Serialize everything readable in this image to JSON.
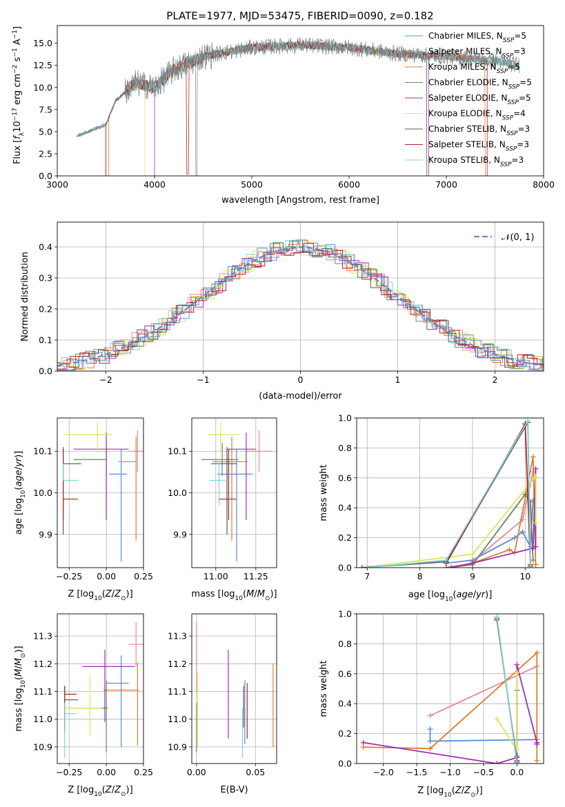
{
  "title": "PLATE=1977, MJD=53475, FIBERID=0090, z=0.182",
  "colors": {
    "Chabrier MILES": "#5b8bd8",
    "Salpeter MILES": "#e5889b",
    "Kroupa MILES": "#e07b2e",
    "Chabrier ELODIE": "#5f8a5f",
    "Salpeter ELODIE": "#9b2fae",
    "Kroupa ELODIE": "#d8e85a",
    "Chabrier STELIB": "#555555",
    "Salpeter STELIB": "#b22222",
    "Kroupa STELIB": "#7ed3df"
  },
  "chart_data": [
    {
      "id": "spectrum",
      "type": "line",
      "xlabel": "wavelength [Angstrom, rest frame]",
      "ylabel": "Flux [f_λ 10^-17 erg cm^-2 s^-1 A^-1]",
      "xlim": [
        3000,
        8000
      ],
      "ylim": [
        0,
        17
      ],
      "xticks": [
        "3000",
        "4000",
        "5000",
        "6000",
        "7000",
        "8000"
      ],
      "yticks": [
        "0.0",
        "2.5",
        "5.0",
        "7.5",
        "10.0",
        "12.5",
        "15.0"
      ],
      "legend_position": "top-right",
      "legend": [
        {
          "label": "Chabrier MILES, N",
          "sub": "SSP",
          "suffix": "=5",
          "color": "#5b8bd8"
        },
        {
          "label": "Salpeter MILES, N",
          "sub": "SSP",
          "suffix": "=3",
          "color": "#e5889b"
        },
        {
          "label": "Kroupa MILES, N",
          "sub": "SSP",
          "suffix": "=5",
          "color": "#e07b2e"
        },
        {
          "label": "Chabrier ELODIE, N",
          "sub": "SSP",
          "suffix": "=5",
          "color": "#5f8a5f"
        },
        {
          "label": "Salpeter ELODIE, N",
          "sub": "SSP",
          "suffix": "=5",
          "color": "#9b2fae"
        },
        {
          "label": "Kroupa ELODIE, N",
          "sub": "SSP",
          "suffix": "=4",
          "color": "#d8e85a"
        },
        {
          "label": "Chabrier STELIB, N",
          "sub": "SSP",
          "suffix": "=3",
          "color": "#555555"
        },
        {
          "label": "Salpeter STELIB, N",
          "sub": "SSP",
          "suffix": "=3",
          "color": "#b22222"
        },
        {
          "label": "Kroupa STELIB, N",
          "sub": "SSP",
          "suffix": "=3",
          "color": "#7ed3df"
        }
      ],
      "observed_envelope": {
        "x": [
          3200,
          3500,
          3600,
          3800,
          4000,
          4200,
          4500,
          5000,
          5500,
          6000,
          6500,
          7000,
          7500,
          7750
        ],
        "y": [
          4.5,
          5.8,
          8.5,
          10.5,
          10.0,
          12.0,
          13.5,
          14.5,
          14.8,
          14.5,
          13.8,
          13.5,
          13.0,
          12.5
        ]
      }
    },
    {
      "id": "residuals",
      "type": "histogram",
      "xlabel": "(data-model)/error",
      "ylabel": "Normed distribution",
      "xlim": [
        -2.5,
        2.5
      ],
      "ylim": [
        0,
        0.48
      ],
      "xticks": [
        "−2",
        "−1",
        "0",
        "1",
        "2"
      ],
      "yticks": [
        "0.0",
        "0.1",
        "0.2",
        "0.3",
        "0.4"
      ],
      "reference_curve": "N(0,1)",
      "legend_position": "top-right",
      "legend": [
        {
          "label": "𝒩(0, 1)",
          "color": "#5b8bd8"
        }
      ]
    },
    {
      "id": "age_vs_Z",
      "type": "scatter",
      "xlabel": "Z [log10(Z/Z⊙)]",
      "ylabel": "age [log10(age/yr)]",
      "xlim": [
        -0.33,
        0.25
      ],
      "ylim": [
        9.82,
        10.18
      ],
      "xticks": [
        "−0.25",
        "0.00",
        "0.25"
      ],
      "yticks": [
        "9.9",
        "10.0",
        "10.1"
      ],
      "points": [
        {
          "model": "Chabrier MILES",
          "x": 0.1,
          "y": 10.045,
          "xerr": [
            0.08,
            0.04
          ],
          "yerr": [
            0.21,
            0.06
          ]
        },
        {
          "model": "Salpeter MILES",
          "x": 0.21,
          "y": 10.1,
          "xerr": [
            0.06,
            0.06
          ],
          "yerr": [
            0.05,
            0.05
          ]
        },
        {
          "model": "Kroupa MILES",
          "x": 0.2,
          "y": 10.075,
          "xerr": [
            0.12,
            0.0
          ],
          "yerr": [
            0.19,
            0.06
          ]
        },
        {
          "model": "Chabrier ELODIE",
          "x": 0.0,
          "y": 10.08,
          "xerr": [
            0.22,
            0.0
          ],
          "yerr": [
            0.04,
            0.04
          ]
        },
        {
          "model": "Salpeter ELODIE",
          "x": 0.0,
          "y": 10.105,
          "xerr": [
            0.22,
            0.15
          ],
          "yerr": [
            0.17,
            0.04
          ]
        },
        {
          "model": "Kroupa ELODIE",
          "x": -0.06,
          "y": 10.14,
          "xerr": [
            0.22,
            0.1
          ],
          "yerr": [
            0.04,
            0.03
          ]
        },
        {
          "model": "Chabrier STELIB",
          "x": -0.29,
          "y": 10.07,
          "xerr": [
            0.0,
            0.12
          ],
          "yerr": [
            0.17,
            0.04
          ]
        },
        {
          "model": "Salpeter STELIB",
          "x": -0.29,
          "y": 9.985,
          "xerr": [
            0.0,
            0.1
          ],
          "yerr": [
            0.05,
            0.12
          ]
        },
        {
          "model": "Kroupa STELIB",
          "x": -0.29,
          "y": 10.03,
          "xerr": [
            0.0,
            0.1
          ],
          "yerr": [
            0.0,
            0.04
          ]
        }
      ]
    },
    {
      "id": "age_vs_mass",
      "type": "scatter",
      "xlabel": "mass [log10(M/M⊙)]",
      "ylabel": "",
      "xlim": [
        10.85,
        11.38
      ],
      "ylim": [
        9.82,
        10.18
      ],
      "xticks": [
        "11.00",
        "11.25"
      ],
      "yticks": [
        "9.9",
        "10.0",
        "10.1"
      ],
      "points": [
        {
          "model": "Chabrier MILES",
          "x": 11.13,
          "y": 10.045,
          "xerr": [
            0.12,
            0.1
          ],
          "yerr": [
            0.21,
            0.06
          ]
        },
        {
          "model": "Salpeter MILES",
          "x": 11.27,
          "y": 10.1,
          "xerr": [
            0.08,
            0.08
          ],
          "yerr": [
            0.05,
            0.05
          ]
        },
        {
          "model": "Kroupa MILES",
          "x": 11.1,
          "y": 10.075,
          "xerr": [
            0.12,
            0.1
          ],
          "yerr": [
            0.19,
            0.06
          ]
        },
        {
          "model": "Chabrier ELODIE",
          "x": 11.04,
          "y": 10.08,
          "xerr": [
            0.13,
            0.1
          ],
          "yerr": [
            0.04,
            0.04
          ]
        },
        {
          "model": "Salpeter ELODIE",
          "x": 11.19,
          "y": 10.105,
          "xerr": [
            0.12,
            0.06
          ],
          "yerr": [
            0.17,
            0.04
          ]
        },
        {
          "model": "Kroupa ELODIE",
          "x": 11.03,
          "y": 10.14,
          "xerr": [
            0.08,
            0.12
          ],
          "yerr": [
            0.04,
            0.03
          ]
        },
        {
          "model": "Chabrier STELIB",
          "x": 11.07,
          "y": 10.07,
          "xerr": [
            0.1,
            0.06
          ],
          "yerr": [
            0.17,
            0.04
          ]
        },
        {
          "model": "Salpeter STELIB",
          "x": 11.08,
          "y": 9.985,
          "xerr": [
            0.06,
            0.05
          ],
          "yerr": [
            0.05,
            0.12
          ]
        },
        {
          "model": "Kroupa STELIB",
          "x": 11.02,
          "y": 10.03,
          "xerr": [
            0.06,
            0.04
          ],
          "yerr": [
            0.06,
            0.04
          ]
        }
      ]
    },
    {
      "id": "mass_weight_vs_age",
      "type": "line",
      "xlabel": "age [log10(age/yr)]",
      "ylabel": "mass weight",
      "xlim": [
        6.8,
        10.35
      ],
      "ylim": [
        0,
        1
      ],
      "xticks": [
        "7",
        "8",
        "9",
        "10"
      ],
      "yticks": [
        "0.0",
        "0.2",
        "0.4",
        "0.6",
        "0.8",
        "1.0"
      ],
      "series": [
        {
          "model": "Chabrier MILES",
          "x": [
            8.5,
            9.0,
            9.8,
            9.95,
            10.1,
            10.15
          ],
          "y": [
            0.03,
            0.05,
            0.2,
            0.24,
            0.14,
            0.45
          ]
        },
        {
          "model": "Salpeter MILES",
          "x": [
            9.0,
            9.95,
            10.15
          ],
          "y": [
            0.04,
            0.32,
            0.64
          ]
        },
        {
          "model": "Kroupa MILES",
          "x": [
            8.5,
            9.0,
            9.7,
            9.8,
            10.15,
            10.2
          ],
          "y": [
            0.0,
            0.03,
            0.12,
            0.1,
            0.74,
            0.02
          ]
        },
        {
          "model": "Chabrier ELODIE",
          "x": [
            8.5,
            9.0,
            10.0,
            10.1,
            10.15
          ],
          "y": [
            0.0,
            0.02,
            0.49,
            0.44,
            0.05
          ]
        },
        {
          "model": "Salpeter ELODIE",
          "x": [
            8.6,
            9.0,
            10.15,
            10.2,
            10.2
          ],
          "y": [
            0.0,
            0.03,
            0.13,
            0.66,
            0.14
          ]
        },
        {
          "model": "Kroupa ELODIE",
          "x": [
            6.9,
            9.0,
            10.2,
            10.2
          ],
          "y": [
            0.0,
            0.09,
            0.61,
            0.3
          ]
        },
        {
          "model": "Chabrier STELIB",
          "x": [
            6.9,
            8.5,
            10.05,
            10.1
          ],
          "y": [
            0.0,
            0.04,
            0.97,
            0.01
          ]
        },
        {
          "model": "Salpeter STELIB",
          "x": [
            8.5,
            10.0,
            10.1
          ],
          "y": [
            0.03,
            0.96,
            0.02
          ]
        },
        {
          "model": "Kroupa STELIB",
          "x": [
            7.0,
            8.5,
            10.05,
            10.1
          ],
          "y": [
            0.0,
            0.05,
            0.98,
            0.0
          ]
        }
      ]
    },
    {
      "id": "mass_vs_Z",
      "type": "scatter",
      "xlabel": "Z [log10(Z/Z⊙)]",
      "ylabel": "mass [log10(M/M⊙)]",
      "xlim": [
        -0.33,
        0.25
      ],
      "ylim": [
        10.84,
        11.38
      ],
      "xticks": [
        "−0.25",
        "0.00",
        "0.25"
      ],
      "yticks": [
        "10.9",
        "11.0",
        "11.1",
        "11.2",
        "11.3"
      ],
      "points": [
        {
          "model": "Chabrier MILES",
          "x": 0.1,
          "y": 11.13,
          "xerr": [
            0.1,
            0.05
          ],
          "yerr": [
            0.23,
            0.1
          ]
        },
        {
          "model": "Salpeter MILES",
          "x": 0.2,
          "y": 11.27,
          "xerr": [
            0.05,
            0.05
          ],
          "yerr": [
            0.08,
            0.08
          ]
        },
        {
          "model": "Kroupa MILES",
          "x": 0.21,
          "y": 11.105,
          "xerr": [
            0.23,
            0.01
          ],
          "yerr": [
            0.2,
            0.1
          ]
        },
        {
          "model": "Chabrier ELODIE",
          "x": 0.0,
          "y": 11.04,
          "xerr": [
            0.24,
            0.01
          ],
          "yerr": [
            0.16,
            0.1
          ]
        },
        {
          "model": "Salpeter ELODIE",
          "x": -0.01,
          "y": 11.19,
          "xerr": [
            0.15,
            0.2
          ],
          "yerr": [
            0.2,
            0.06
          ]
        },
        {
          "model": "Kroupa ELODIE",
          "x": -0.11,
          "y": 11.04,
          "xerr": [
            0.17,
            0.08
          ],
          "yerr": [
            0.1,
            0.12
          ]
        },
        {
          "model": "Chabrier STELIB",
          "x": -0.28,
          "y": 11.07,
          "xerr": [
            0.0,
            0.09
          ],
          "yerr": [
            0.1,
            0.05
          ]
        },
        {
          "model": "Salpeter STELIB",
          "x": -0.28,
          "y": 11.09,
          "xerr": [
            0.0,
            0.08
          ],
          "yerr": [
            0.14,
            0.03
          ]
        },
        {
          "model": "Kroupa STELIB",
          "x": -0.28,
          "y": 11.02,
          "xerr": [
            0.0,
            0.08
          ],
          "yerr": [
            0.16,
            0.04
          ]
        }
      ]
    },
    {
      "id": "mass_vs_EBV",
      "type": "scatter",
      "xlabel": "E(B-V)",
      "ylabel": "",
      "xlim": [
        -0.004,
        0.068
      ],
      "ylim": [
        10.84,
        11.38
      ],
      "xticks": [
        "0.00",
        "0.05"
      ],
      "yticks": [
        "10.9",
        "11.0",
        "11.1",
        "11.2",
        "11.3"
      ],
      "points": [
        {
          "model": "Chabrier MILES",
          "x": 0.041,
          "y": 11.05,
          "xerr": [
            0,
            0
          ],
          "yerr": [
            0.14,
            0.09
          ]
        },
        {
          "model": "Salpeter MILES",
          "x": 0.0,
          "y": 11.2,
          "xerr": [
            0,
            0
          ],
          "yerr": [
            0.1,
            0.15
          ]
        },
        {
          "model": "Kroupa MILES",
          "x": 0.065,
          "y": 11.05,
          "xerr": [
            0,
            0
          ],
          "yerr": [
            0.15,
            0.15
          ]
        },
        {
          "model": "Chabrier ELODIE",
          "x": 0.0,
          "y": 11.0,
          "xerr": [
            0,
            0
          ],
          "yerr": [
            0.12,
            0.06
          ]
        },
        {
          "model": "Salpeter ELODIE",
          "x": 0.027,
          "y": 11.1,
          "xerr": [
            0,
            0
          ],
          "yerr": [
            0.17,
            0.15
          ]
        },
        {
          "model": "Kroupa ELODIE",
          "x": 0.001,
          "y": 11.05,
          "xerr": [
            0,
            0
          ],
          "yerr": [
            0.15,
            0.12
          ]
        },
        {
          "model": "Chabrier STELIB",
          "x": 0.04,
          "y": 11.05,
          "xerr": [
            0,
            0
          ],
          "yerr": [
            0.08,
            0.07
          ]
        },
        {
          "model": "Salpeter STELIB",
          "x": 0.043,
          "y": 11.05,
          "xerr": [
            0,
            0
          ],
          "yerr": [
            0.12,
            0.08
          ]
        },
        {
          "model": "Kroupa STELIB",
          "x": 0.039,
          "y": 10.95,
          "xerr": [
            0,
            0
          ],
          "yerr": [
            0.09,
            0.09
          ]
        }
      ]
    },
    {
      "id": "mass_weight_vs_Z",
      "type": "line",
      "xlabel": "Z [log10(Z/Z⊙)]",
      "ylabel": "mass weight",
      "xlim": [
        -2.4,
        0.4
      ],
      "ylim": [
        0,
        1
      ],
      "xticks": [
        "−2.0",
        "−1.5",
        "−1.0",
        "−0.5",
        "0.0"
      ],
      "yticks": [
        "0.0",
        "0.2",
        "0.4",
        "0.6",
        "0.8",
        "1.0"
      ],
      "series": [
        {
          "model": "Chabrier MILES",
          "x": [
            -1.3,
            -1.3,
            0.3
          ],
          "y": [
            0.23,
            0.15,
            0.16
          ]
        },
        {
          "model": "Salpeter MILES",
          "x": [
            -1.3,
            0.3
          ],
          "y": [
            0.32,
            0.65
          ]
        },
        {
          "model": "Kroupa MILES",
          "x": [
            -2.3,
            -1.3,
            0.3,
            0.3
          ],
          "y": [
            0.11,
            0.1,
            0.74,
            0.02
          ]
        },
        {
          "model": "Chabrier ELODIE",
          "x": [
            0.0,
            0.0,
            0.0
          ],
          "y": [
            0.49,
            0.05,
            0.0
          ]
        },
        {
          "model": "Salpeter ELODIE",
          "x": [
            -2.3,
            -0.3,
            0.0,
            0.0,
            0.3,
            0.3
          ],
          "y": [
            0.14,
            0.0,
            0.04,
            0.66,
            0.14,
            0.13
          ]
        },
        {
          "model": "Kroupa ELODIE",
          "x": [
            -0.3,
            0.0,
            0.0
          ],
          "y": [
            0.3,
            0.09,
            0.61
          ]
        },
        {
          "model": "Chabrier STELIB",
          "x": [
            -0.3,
            0.0
          ],
          "y": [
            0.97,
            0.01
          ]
        },
        {
          "model": "Salpeter STELIB",
          "x": [
            -0.3,
            0.0
          ],
          "y": [
            0.96,
            0.02
          ]
        },
        {
          "model": "Kroupa STELIB",
          "x": [
            -0.3,
            0.0
          ],
          "y": [
            0.98,
            0.0
          ]
        }
      ]
    }
  ]
}
